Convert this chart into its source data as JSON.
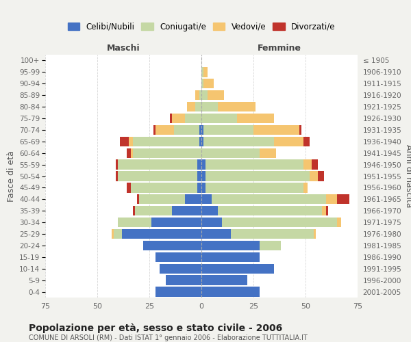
{
  "age_groups": [
    "0-4",
    "5-9",
    "10-14",
    "15-19",
    "20-24",
    "25-29",
    "30-34",
    "35-39",
    "40-44",
    "45-49",
    "50-54",
    "55-59",
    "60-64",
    "65-69",
    "70-74",
    "75-79",
    "80-84",
    "85-89",
    "90-94",
    "95-99",
    "100+"
  ],
  "birth_years": [
    "2001-2005",
    "1996-2000",
    "1991-1995",
    "1986-1990",
    "1981-1985",
    "1976-1980",
    "1971-1975",
    "1966-1970",
    "1961-1965",
    "1956-1960",
    "1951-1955",
    "1946-1950",
    "1941-1945",
    "1936-1940",
    "1931-1935",
    "1926-1930",
    "1921-1925",
    "1916-1920",
    "1911-1915",
    "1906-1910",
    "≤ 1905"
  ],
  "male": {
    "celibe": [
      22,
      17,
      20,
      22,
      28,
      38,
      24,
      14,
      8,
      2,
      2,
      2,
      0,
      1,
      1,
      0,
      0,
      0,
      0,
      0,
      0
    ],
    "coniugato": [
      0,
      0,
      0,
      0,
      0,
      4,
      16,
      18,
      22,
      32,
      38,
      38,
      33,
      32,
      12,
      8,
      3,
      1,
      0,
      0,
      0
    ],
    "vedovo": [
      0,
      0,
      0,
      0,
      0,
      1,
      0,
      0,
      0,
      0,
      0,
      0,
      1,
      2,
      9,
      6,
      4,
      2,
      0,
      0,
      0
    ],
    "divorziato": [
      0,
      0,
      0,
      0,
      0,
      0,
      0,
      1,
      1,
      2,
      1,
      1,
      2,
      4,
      1,
      1,
      0,
      0,
      0,
      0,
      0
    ]
  },
  "female": {
    "nubile": [
      28,
      22,
      35,
      28,
      28,
      14,
      10,
      8,
      5,
      2,
      2,
      2,
      0,
      1,
      1,
      0,
      0,
      0,
      0,
      0,
      0
    ],
    "coniugata": [
      0,
      0,
      0,
      0,
      10,
      40,
      55,
      50,
      55,
      47,
      50,
      47,
      28,
      34,
      24,
      17,
      8,
      3,
      1,
      1,
      0
    ],
    "vedova": [
      0,
      0,
      0,
      0,
      0,
      1,
      2,
      2,
      5,
      2,
      4,
      4,
      8,
      14,
      22,
      18,
      18,
      8,
      5,
      2,
      0
    ],
    "divorziata": [
      0,
      0,
      0,
      0,
      0,
      0,
      0,
      1,
      6,
      0,
      3,
      3,
      0,
      3,
      1,
      0,
      0,
      0,
      0,
      0,
      0
    ]
  },
  "colors": {
    "celibe": "#4472C4",
    "coniugato": "#C5D8A4",
    "vedovo": "#F5C570",
    "divorziato": "#C0332B"
  },
  "xlim": 75,
  "title": "Popolazione per età, sesso e stato civile - 2006",
  "subtitle": "COMUNE DI ARSOLI (RM) - Dati ISTAT 1° gennaio 2006 - Elaborazione TUTTITALIA.IT",
  "ylabel_left": "Fasce di età",
  "ylabel_right": "Anni di nascita",
  "xlabel_left": "Maschi",
  "xlabel_right": "Femmine",
  "bg_color": "#f2f2ee",
  "plot_bg_color": "#ffffff"
}
